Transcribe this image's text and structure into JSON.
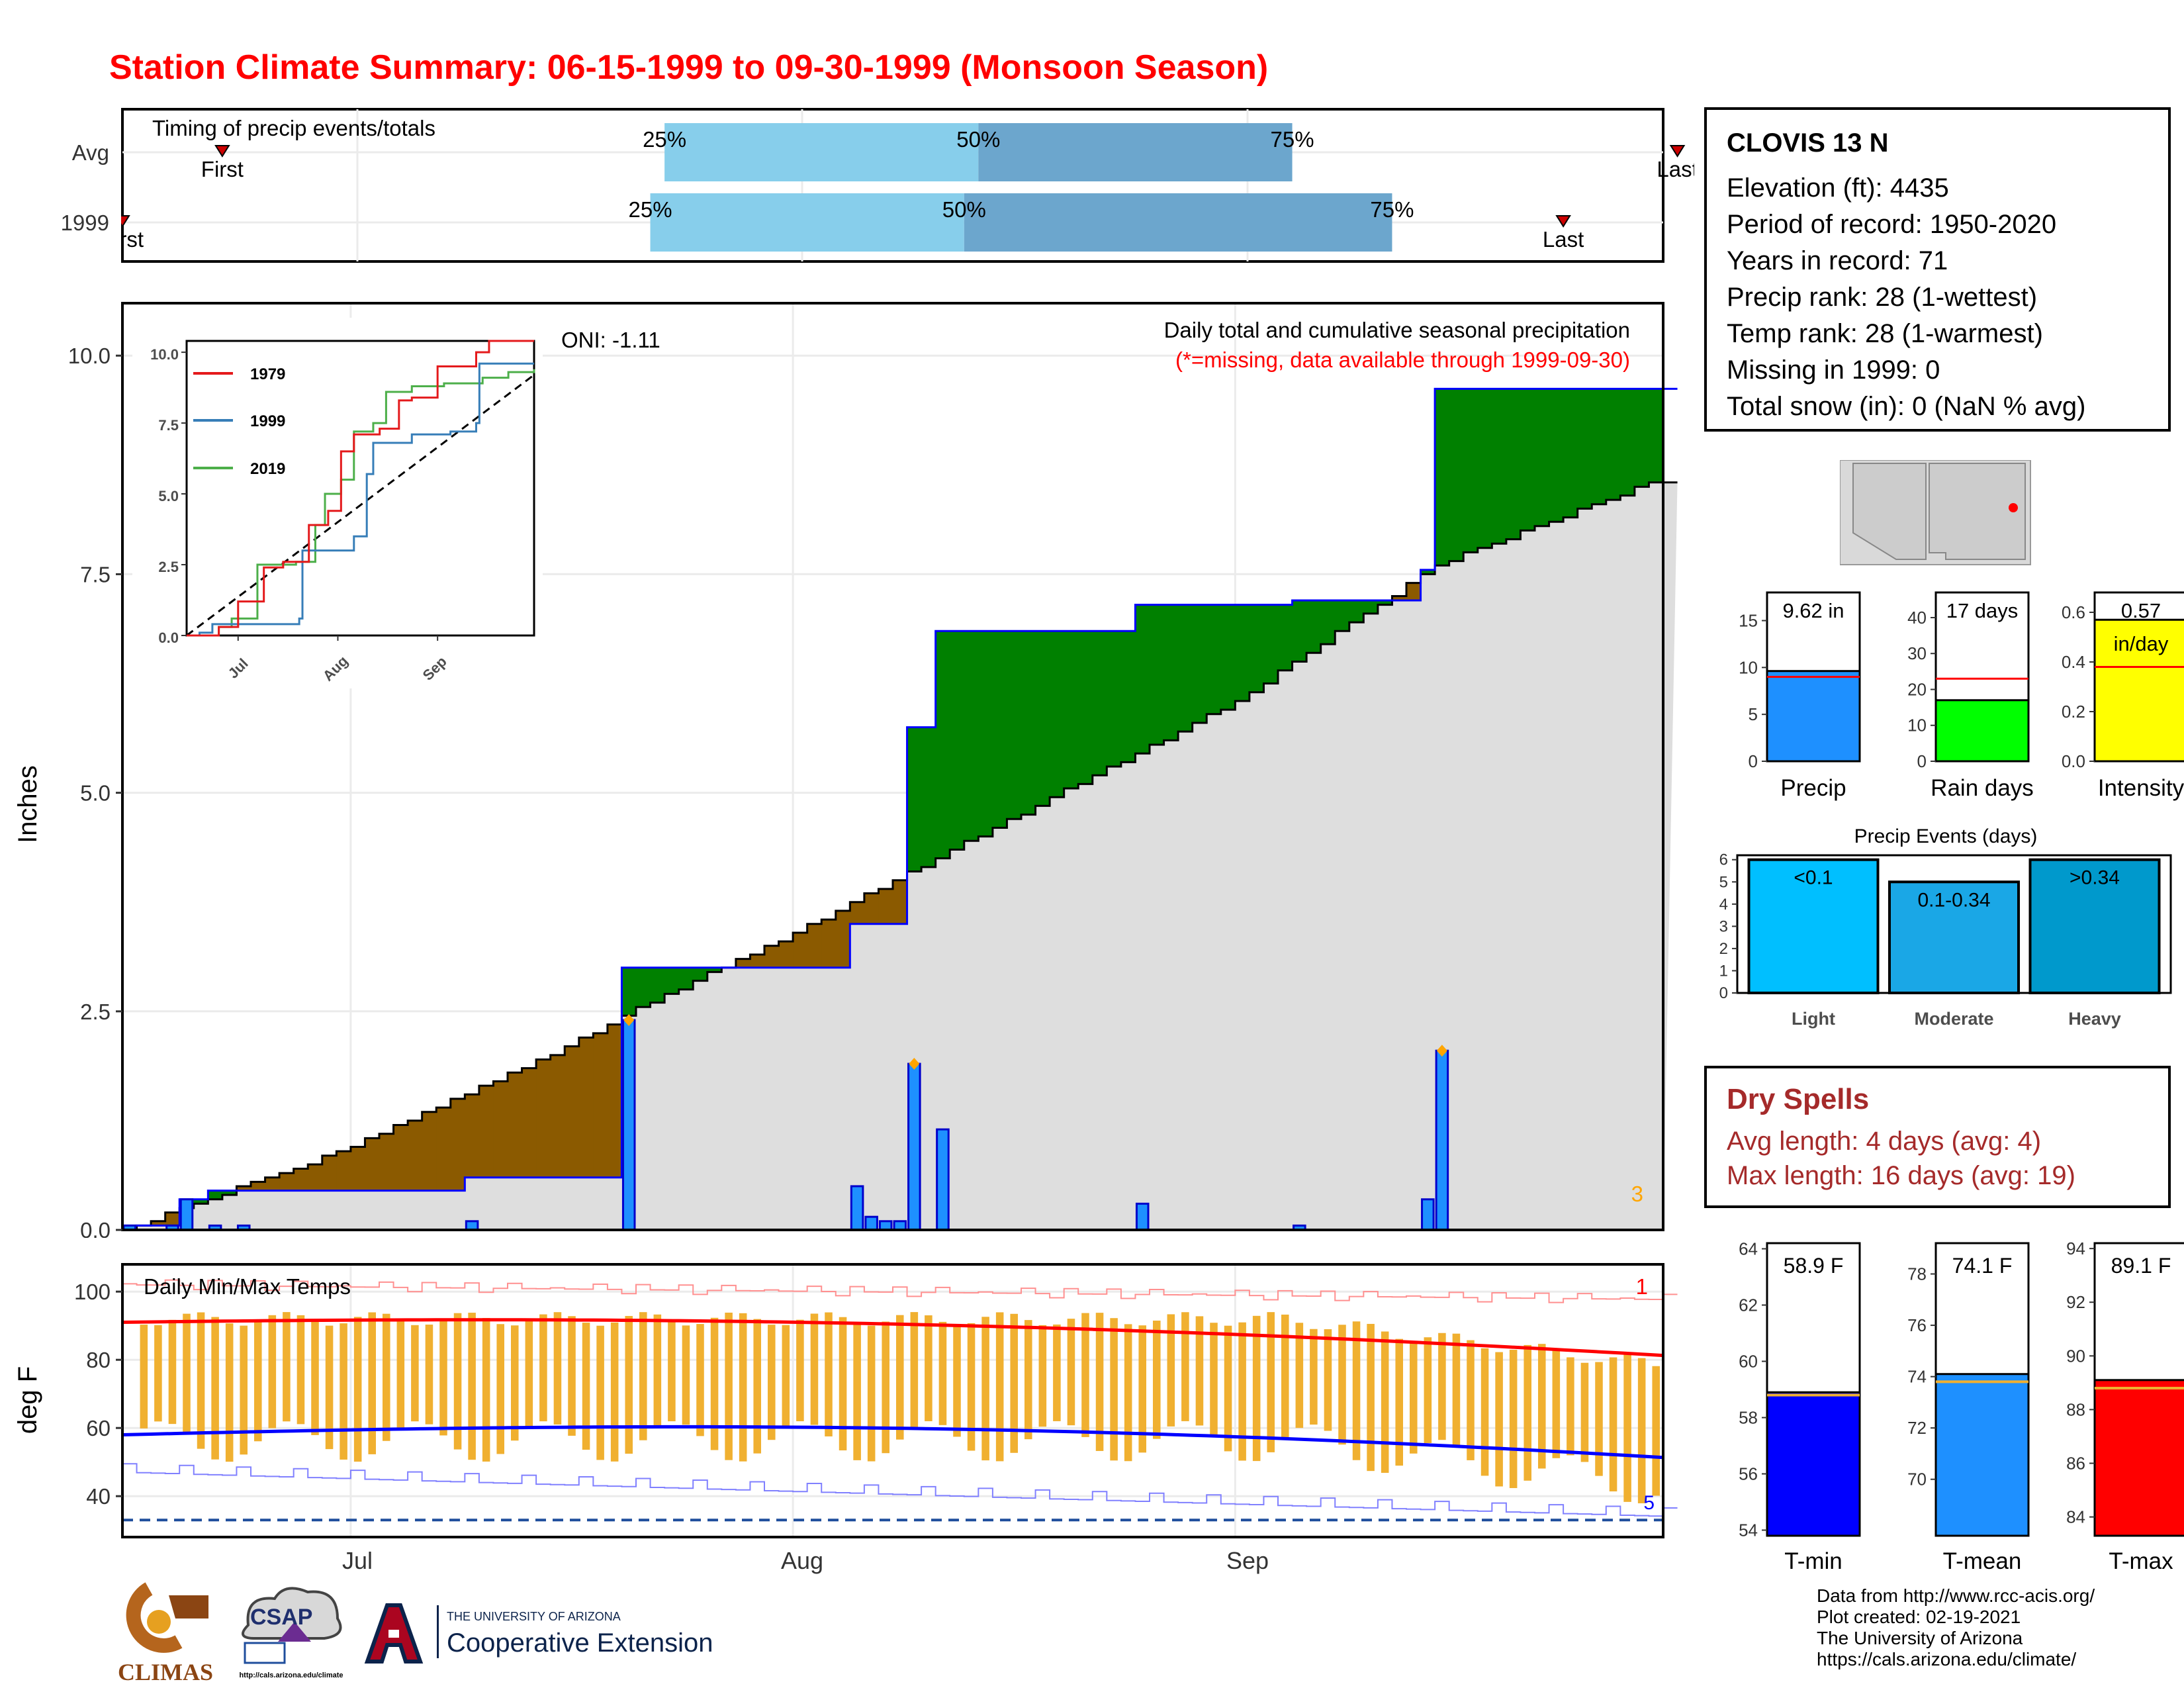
{
  "title": "Station Climate Summary: 06-15-1999 to 09-30-1999 (Monsoon Season)",
  "timing": {
    "panel_title": "Timing of precip events/totals",
    "rows": [
      {
        "label": "Avg",
        "p25": "25%",
        "p50": "50%",
        "p75": "75%",
        "first": "First",
        "last": "Last",
        "p25_day": 38,
        "p50_day": 60,
        "p75_day": 82,
        "first_day": 7,
        "last_day": 109
      },
      {
        "label": "1999",
        "p25": "25%",
        "p50": "50%",
        "p75": "75%",
        "first": "First",
        "last": "Last",
        "p25_day": 37,
        "p50_day": 59,
        "p75_day": 89,
        "first_day": 0,
        "last_day": 101
      }
    ]
  },
  "main": {
    "ylabel": "Inches",
    "oni": "ONI: -1.11",
    "subtitle": "Daily total and cumulative seasonal precipitation",
    "note": "(*=missing, data available through 1999-09-30)",
    "corner_count": "3",
    "yticks": [
      "0.0",
      "2.5",
      "5.0",
      "7.5",
      "10.0"
    ]
  },
  "inset": {
    "yticks": [
      "0.0",
      "2.5",
      "5.0",
      "7.5",
      "10.0"
    ],
    "xticks": [
      "Jul",
      "Aug",
      "Sep"
    ],
    "legend": [
      {
        "name": "1979",
        "color": "#e41a1c"
      },
      {
        "name": "1999",
        "color": "#377eb8"
      },
      {
        "name": "2019",
        "color": "#4daf4a"
      }
    ]
  },
  "temps": {
    "panel_title": "Daily Min/Max Temps",
    "ylabel": "deg F",
    "yticks": [
      "40",
      "60",
      "80",
      "100"
    ],
    "corner_top": "1",
    "corner_bottom": "5"
  },
  "xaxis": [
    "Jul",
    "Aug",
    "Sep"
  ],
  "station": {
    "name": "CLOVIS 13 N",
    "lines": [
      "Elevation (ft): 4435",
      "Period of record: 1950-2020",
      "Years in record: 71",
      "Precip rank: 28 (1-wettest)",
      "Temp rank: 28 (1-warmest)",
      "Missing in 1999: 0",
      "Total snow (in): 0 (NaN % avg)"
    ]
  },
  "summary_bars": [
    {
      "label": "Precip",
      "value_text": "9.62 in",
      "value": 9.62,
      "avg": 9.0,
      "ymax": 18,
      "yticks": [
        "0",
        "5",
        "10",
        "15"
      ],
      "color": "#1e90ff"
    },
    {
      "label": "Rain days",
      "value_text": "17 days",
      "value": 17,
      "avg": 23,
      "ymax": 47,
      "yticks": [
        "0",
        "10",
        "20",
        "30",
        "40"
      ],
      "color": "#00ff00"
    },
    {
      "label": "Intensity",
      "value_text": "0.57",
      "value_text2": "in/day",
      "value": 0.57,
      "avg": 0.38,
      "ymax": 0.68,
      "yticks": [
        "0.0",
        "0.2",
        "0.4",
        "0.6"
      ],
      "color": "#ffff00"
    }
  ],
  "events": {
    "title": "Precip Events (days)",
    "yticks": [
      "0",
      "1",
      "2",
      "3",
      "4",
      "5",
      "6"
    ],
    "bars": [
      {
        "label": "Light",
        "range": "<0.1",
        "value": 6,
        "color": "#00bfff"
      },
      {
        "label": "Moderate",
        "range": "0.1-0.34",
        "value": 5,
        "color": "#1aa7e6"
      },
      {
        "label": "Heavy",
        "range": ">0.34",
        "value": 6,
        "color": "#0099cc"
      }
    ]
  },
  "dry_spells": {
    "title": "Dry Spells",
    "avg": "Avg length: 4 days (avg: 4)",
    "max": "Max length: 16 days (avg: 19)"
  },
  "temp_bars": [
    {
      "label": "T-min",
      "value_text": "58.9 F",
      "value": 58.9,
      "avg": 58.8,
      "ymin": 53.8,
      "ymax": 64.2,
      "yticks": [
        "54",
        "56",
        "58",
        "60",
        "62",
        "64"
      ],
      "color": "#0000ff"
    },
    {
      "label": "T-mean",
      "value_text": "74.1 F",
      "value": 74.1,
      "avg": 73.8,
      "ymin": 67.8,
      "ymax": 79.2,
      "yticks": [
        "70",
        "72",
        "74",
        "76",
        "78"
      ],
      "color": "#1e90ff"
    },
    {
      "label": "T-max",
      "value_text": "89.1 F",
      "value": 89.1,
      "avg": 88.8,
      "ymin": 83.3,
      "ymax": 94.2,
      "yticks": [
        "84",
        "86",
        "88",
        "90",
        "92",
        "94"
      ],
      "color": "#ff0000"
    }
  ],
  "footer": {
    "credits": [
      "Data from http://www.rcc-acis.org/",
      "Plot created: 02-19-2021",
      "The University of Arizona",
      "https://cals.arizona.edu/climate/"
    ],
    "logo_climas": "CLIMAS",
    "logo_csap": "CSAP",
    "logo_csap_url": "http://cals.arizona.edu/climate",
    "ua_line1": "THE UNIVERSITY OF ARIZONA",
    "ua_line2": "Cooperative Extension"
  },
  "chart_data": {
    "type": "area",
    "title": "Daily total and cumulative seasonal precipitation",
    "ylabel": "Inches",
    "ylim": [
      0,
      10.6
    ],
    "x_start": "1999-06-15",
    "x_end": "1999-09-30",
    "daily_precip_1999": [
      {
        "date": "1999-06-15",
        "value": 0.05
      },
      {
        "date": "1999-06-18",
        "value": 0.05
      },
      {
        "date": "1999-06-19",
        "value": 0.35
      },
      {
        "date": "1999-06-21",
        "value": 0.05
      },
      {
        "date": "1999-06-23",
        "value": 0.05
      },
      {
        "date": "1999-07-09",
        "value": 0.1
      },
      {
        "date": "1999-07-20",
        "value": 2.4
      },
      {
        "date": "1999-08-05",
        "value": 0.5
      },
      {
        "date": "1999-08-06",
        "value": 0.15
      },
      {
        "date": "1999-08-07",
        "value": 0.1
      },
      {
        "date": "1999-08-08",
        "value": 0.1
      },
      {
        "date": "1999-08-09",
        "value": 1.9
      },
      {
        "date": "1999-08-11",
        "value": 1.15
      },
      {
        "date": "1999-08-25",
        "value": 0.3
      },
      {
        "date": "1999-09-05",
        "value": 0.05
      },
      {
        "date": "1999-09-14",
        "value": 0.35
      },
      {
        "date": "1999-09-15",
        "value": 2.05
      }
    ],
    "cumulative_1999": [
      {
        "date": "1999-06-15",
        "value": 0.05
      },
      {
        "date": "1999-06-19",
        "value": 0.35
      },
      {
        "date": "1999-06-21",
        "value": 0.45
      },
      {
        "date": "1999-07-09",
        "value": 0.6
      },
      {
        "date": "1999-07-20",
        "value": 3.0
      },
      {
        "date": "1999-08-05",
        "value": 3.5
      },
      {
        "date": "1999-08-09",
        "value": 5.75
      },
      {
        "date": "1999-08-11",
        "value": 6.85
      },
      {
        "date": "1999-08-25",
        "value": 7.15
      },
      {
        "date": "1999-09-05",
        "value": 7.2
      },
      {
        "date": "1999-09-14",
        "value": 7.55
      },
      {
        "date": "1999-09-15",
        "value": 9.62
      }
    ],
    "cumulative_avg": [
      {
        "date": "1999-06-15",
        "value": 0.0
      },
      {
        "date": "1999-07-01",
        "value": 0.95
      },
      {
        "date": "1999-07-15",
        "value": 2.0
      },
      {
        "date": "1999-07-20",
        "value": 2.45
      },
      {
        "date": "1999-08-01",
        "value": 3.4
      },
      {
        "date": "1999-08-15",
        "value": 4.6
      },
      {
        "date": "1999-09-01",
        "value": 6.05
      },
      {
        "date": "1999-09-15",
        "value": 7.6
      },
      {
        "date": "1999-09-30",
        "value": 8.55
      }
    ],
    "temps_daily_ranges": "Daily min/max temps with avg max ~91F and avg min ~60F"
  }
}
